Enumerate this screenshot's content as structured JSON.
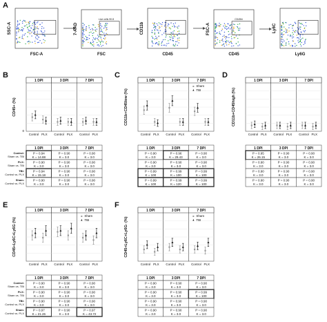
{
  "panel_letters": [
    "A",
    "B",
    "C",
    "D",
    "E",
    "F"
  ],
  "flow": {
    "plots": [
      {
        "x": "FSC-A",
        "y": "SSC-A",
        "gate": ""
      },
      {
        "x": "FSC",
        "y": "7-AAD",
        "gate": "Live cells 90.8"
      },
      {
        "x": "CD45",
        "y": "CD11b",
        "gate": ""
      },
      {
        "x": "CD45",
        "y": "FSC-A",
        "gate": "CD45hi"
      },
      {
        "x": "Ly6G",
        "y": "Ly6C",
        "gate": ""
      }
    ]
  },
  "common": {
    "groups": [
      "1 DPI",
      "3 DPI",
      "7 DPI"
    ],
    "xcats": [
      "Control",
      "PLX"
    ],
    "legend": [
      "Sham",
      "TBI"
    ],
    "row_labels": [
      "Control:\nSham vs. TBI",
      "PLX:\nSham vs. TBI",
      "TBI:\nControl vs. PLX",
      "Sham:\nControl vs. PLX"
    ]
  },
  "charts": [
    {
      "id": "B",
      "ylabel": "CD45+ (%)",
      "yticks": [
        "0",
        "",
        "",
        "",
        "",
        "",
        "",
        ""
      ],
      "legend": false,
      "chart_data": {
        "type": "scatter",
        "x": [
          "Control",
          "PLX"
        ],
        "series": [
          {
            "name": "Sham",
            "group": "1 DPI",
            "values": [
              12,
              10
            ]
          },
          {
            "name": "TBI",
            "group": "1 DPI",
            "values": [
              14,
              9
            ]
          },
          {
            "name": "Sham",
            "group": "3 DPI",
            "values": [
              8,
              8
            ]
          },
          {
            "name": "TBI",
            "group": "3 DPI",
            "values": [
              9,
              8
            ]
          },
          {
            "name": "Sham",
            "group": "7 DPI",
            "values": [
              8,
              8
            ]
          },
          {
            "name": "TBI",
            "group": "7 DPI",
            "values": [
              9,
              8
            ]
          }
        ]
      },
      "table": [
        [
          "P = 0.94\nK = 14.88",
          "P = 0.90\nK = 3.0",
          "P = 0.90\nK = 3.0"
        ],
        [
          "P = 0.90\nK = 3.0",
          "P = 0.90\nK = 3.0",
          "P = 0.90\nK = 3.0"
        ],
        [
          "P = 0.94\nK = 15.18",
          "P = 0.90\nK = 3.0",
          "P = 0.90\nK = 3.0"
        ],
        [
          "P = 0.90\nK = 3.0",
          "P = 0.90\nK = 3.0",
          "P = 0.90\nK = 3.0"
        ]
      ],
      "boxed": [
        [
          0,
          0
        ],
        [
          2,
          0
        ]
      ]
    },
    {
      "id": "C",
      "ylabel": "CD11b+CD45low (%)",
      "yticks": [
        "",
        "",
        "",
        "",
        "",
        "",
        "",
        ""
      ],
      "legend": true,
      "chart_data": {
        "type": "scatter",
        "x": [
          "Control",
          "PLX"
        ],
        "series": [
          {
            "name": "Sham",
            "group": "1 DPI",
            "values": [
              18,
              8
            ]
          },
          {
            "name": "TBI",
            "group": "1 DPI",
            "values": [
              22,
              7
            ]
          },
          {
            "name": "Sham",
            "group": "3 DPI",
            "values": [
              20,
              8
            ]
          },
          {
            "name": "TBI",
            "group": "3 DPI",
            "values": [
              26,
              8
            ]
          },
          {
            "name": "Sham",
            "group": "7 DPI",
            "values": [
              17,
              8
            ]
          },
          {
            "name": "TBI",
            "group": "7 DPI",
            "values": [
              20,
              8
            ]
          }
        ]
      },
      "table": [
        [
          "P = 0.90\nK = 3.0",
          "P = 0.96\nK = 29.43",
          "P = 0.90\nK = 3.0"
        ],
        [
          "P = 0.90\nK = 3.0",
          "P = 0.90\nK = 3.0",
          "P = 0.90\nK = 3.0"
        ],
        [
          "P = 0.99\nK = 100",
          "P = 0.99\nK = 100",
          "P = 0.99\nK = 100"
        ],
        [
          "P = 0.99\nK = 100",
          "P = 0.99\nK = 120",
          "P = 0.99\nK = 100"
        ]
      ],
      "boxed": [
        [
          0,
          1
        ],
        [
          2,
          0
        ],
        [
          2,
          1
        ],
        [
          2,
          2
        ],
        [
          3,
          0
        ],
        [
          3,
          1
        ],
        [
          3,
          2
        ]
      ]
    },
    {
      "id": "D",
      "ylabel": "CD11b+CD45high (%)",
      "yticks": [
        "",
        "",
        "",
        "",
        "",
        "",
        "",
        ""
      ],
      "legend": false,
      "chart_data": {
        "type": "scatter",
        "x": [
          "Control",
          "PLX"
        ],
        "series": [
          {
            "name": "Sham",
            "group": "1 DPI",
            "values": [
              5,
              4
            ]
          },
          {
            "name": "TBI",
            "group": "1 DPI",
            "values": [
              6,
              5
            ]
          },
          {
            "name": "Sham",
            "group": "3 DPI",
            "values": [
              5,
              4
            ]
          },
          {
            "name": "TBI",
            "group": "3 DPI",
            "values": [
              5,
              5
            ]
          },
          {
            "name": "Sham",
            "group": "7 DPI",
            "values": [
              5,
              4
            ]
          },
          {
            "name": "TBI",
            "group": "7 DPI",
            "values": [
              5,
              5
            ]
          }
        ]
      },
      "table": [
        [
          "P = 0.95\nK = 26.15",
          "P = 0.90\nK = 3.0",
          "P = 0.90\nK = 3.0"
        ],
        [
          "P = 0.90\nK = 3.0",
          "P = 0.90\nK = 3.0",
          "P = 0.90\nK = 3.0"
        ],
        [
          "P = 0.90\nK = 3.0",
          "P = 0.90\nK = 3.0",
          "P = 0.90\nK = 3.0"
        ],
        [
          "P = 0.90\nK = 3.0",
          "P = 0.90\nK = 3.0",
          "P = 0.90\nK = 3.0"
        ]
      ],
      "boxed": [
        [
          0,
          0
        ]
      ]
    },
    {
      "id": "E",
      "ylabel": "CD45+Ly6C+Ly6G (%)",
      "yticks": [
        "",
        "",
        "",
        "",
        "",
        "",
        "",
        ""
      ],
      "legend": true,
      "chart_data": {
        "type": "scatter",
        "x": [
          "Control",
          "PLX"
        ],
        "series": [
          {
            "name": "Sham",
            "group": "1 DPI",
            "values": [
              22,
              20
            ]
          },
          {
            "name": "TBI",
            "group": "1 DPI",
            "values": [
              24,
              26
            ]
          },
          {
            "name": "Sham",
            "group": "3 DPI",
            "values": [
              25,
              22
            ]
          },
          {
            "name": "TBI",
            "group": "3 DPI",
            "values": [
              26,
              28
            ]
          },
          {
            "name": "Sham",
            "group": "7 DPI",
            "values": [
              20,
              18
            ]
          },
          {
            "name": "TBI",
            "group": "7 DPI",
            "values": [
              22,
              24
            ]
          }
        ]
      },
      "table": [
        [
          "P = 0.90\nK = 3.0",
          "P = 0.90\nK = 3.0",
          "P = 0.90\nK = 3.0"
        ],
        [
          "P = 0.90\nK = 3.0",
          "P = 0.90\nK = 3.0",
          "P = 0.90\nK = 3.0"
        ],
        [
          "P = 0.90\nK = 3.0",
          "P = 0.90\nK = 3.0",
          "P = 0.90\nK = 3.0"
        ],
        [
          "P = 0.97\nK = 21.26",
          "P = 0.90\nK = 3.0",
          "P = 0.97\nK = 43.72"
        ]
      ],
      "boxed": [
        [
          3,
          0
        ],
        [
          3,
          2
        ]
      ]
    },
    {
      "id": "F",
      "ylabel": "CD45+Ly6C+Ly6G- (%)",
      "yticks": [
        "",
        "",
        "",
        "",
        "",
        "",
        "",
        ""
      ],
      "legend": true,
      "chart_data": {
        "type": "scatter",
        "x": [
          "Control",
          "PLX"
        ],
        "series": [
          {
            "name": "Sham",
            "group": "1 DPI",
            "values": [
              10,
              8
            ]
          },
          {
            "name": "TBI",
            "group": "1 DPI",
            "values": [
              14,
              12
            ]
          },
          {
            "name": "Sham",
            "group": "3 DPI",
            "values": [
              12,
              10
            ]
          },
          {
            "name": "TBI",
            "group": "3 DPI",
            "values": [
              16,
              12
            ]
          },
          {
            "name": "Sham",
            "group": "7 DPI",
            "values": [
              10,
              9
            ]
          },
          {
            "name": "TBI",
            "group": "7 DPI",
            "values": [
              13,
              16
            ]
          }
        ]
      },
      "table": [
        [
          "P = 0.90\nK = 3.0",
          "P = 0.90\nK = 3.0",
          "P = 0.90\nK = 3.0"
        ],
        [
          "P = 0.90\nK = 3.0",
          "P = 0.90\nK = 3.0",
          "P = 0.99\nK = 100"
        ],
        [
          "P = 0.90\nK = 3.0",
          "P = 0.90\nK = 3.0",
          "P = 0.90\nK = 3.0"
        ],
        [
          "P = 0.90\nK = 3.0",
          "P = 0.90\nK = 3.0",
          "P = 0.90\nK = 3.0"
        ]
      ],
      "boxed": [
        [
          1,
          2
        ]
      ]
    }
  ]
}
